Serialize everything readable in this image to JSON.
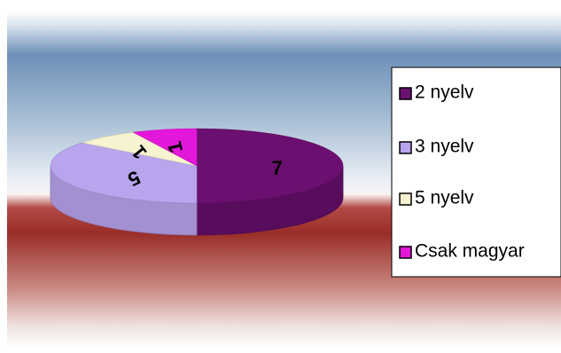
{
  "chart_data": {
    "type": "pie",
    "style": "3d",
    "categories": [
      "2 nyelv",
      "3 nyelv",
      "5 nyelv",
      "Csak magyar"
    ],
    "values": [
      7,
      5,
      1,
      1
    ],
    "data_labels": [
      "7",
      "5",
      "1",
      "1"
    ],
    "colors": [
      "#6B0F70",
      "#B9A4EE",
      "#F7F2CF",
      "#E317D9"
    ],
    "legend": {
      "placement": "right",
      "entries": [
        "2 nyelv",
        "3 nyelv",
        "5 nyelv",
        "Csak magyar"
      ]
    },
    "title": "",
    "background": "gradient: light blue top, dark red middle band, pale bottom"
  }
}
